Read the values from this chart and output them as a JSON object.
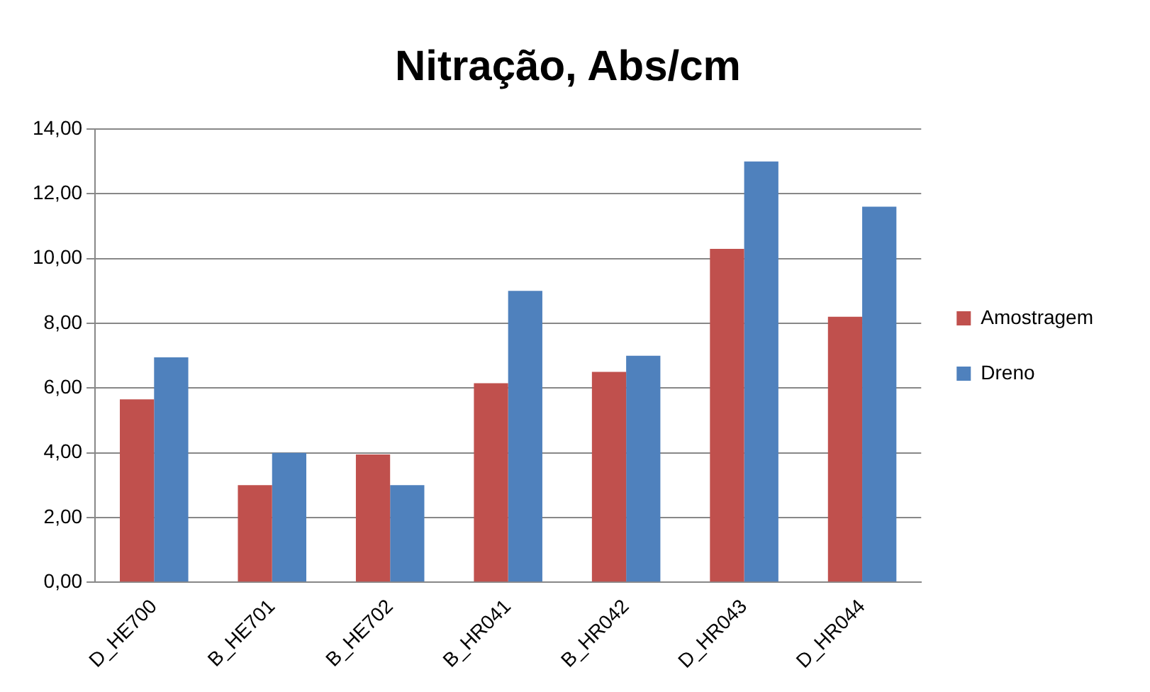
{
  "chart_data": {
    "type": "bar",
    "title": "Nitração, Abs/cm",
    "categories": [
      "D_HE700",
      "B_HE701",
      "B_HE702",
      "B_HR041",
      "B_HR042",
      "D_HR043",
      "D_HR044"
    ],
    "series": [
      {
        "name": "Amostragem",
        "color": "#c0504d",
        "values": [
          5.65,
          3.0,
          3.95,
          6.15,
          6.5,
          10.3,
          8.2
        ]
      },
      {
        "name": "Dreno",
        "color": "#4f81bd",
        "values": [
          6.95,
          4.0,
          3.0,
          9.0,
          7.0,
          13.0,
          11.6
        ]
      }
    ],
    "ylim": [
      0,
      14
    ],
    "yticks": [
      {
        "value": 0,
        "label": "0,00"
      },
      {
        "value": 2,
        "label": "2,00"
      },
      {
        "value": 4,
        "label": "4,00"
      },
      {
        "value": 6,
        "label": "6,00"
      },
      {
        "value": 8,
        "label": "8,00"
      },
      {
        "value": 10,
        "label": "10,00"
      },
      {
        "value": 12,
        "label": "12,00"
      },
      {
        "value": 14,
        "label": "14,00"
      }
    ],
    "grid": "y",
    "legend": "right"
  }
}
